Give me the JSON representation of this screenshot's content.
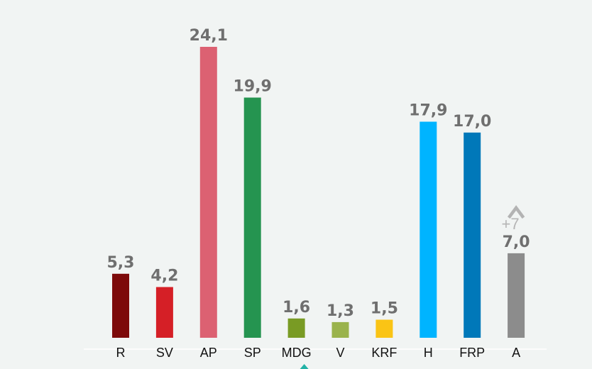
{
  "chart_data": {
    "type": "bar",
    "categories": [
      "R",
      "SV",
      "AP",
      "SP",
      "MDG",
      "V",
      "KRF",
      "H",
      "FRP",
      "A"
    ],
    "values": [
      5.3,
      4.2,
      24.1,
      19.9,
      1.6,
      1.3,
      1.5,
      17.9,
      17.0,
      7.0
    ],
    "value_labels": [
      "5,3",
      "4,2",
      "24,1",
      "19,9",
      "1,6",
      "1,3",
      "1,5",
      "17,9",
      "17,0",
      "7,0"
    ],
    "colors": [
      "#7d0a0a",
      "#d51f26",
      "#dc6172",
      "#259450",
      "#799b24",
      "#9ab34c",
      "#fac415",
      "#00b4ff",
      "#0078b9",
      "#8c8c8c"
    ],
    "title": "",
    "xlabel": "",
    "ylabel": "",
    "ylim": [
      0,
      25
    ],
    "grid": false,
    "annotations": [
      {
        "category": "A",
        "text": "+7",
        "icon": "chevron-up-icon"
      }
    ]
  },
  "background": "#f1f4f3"
}
